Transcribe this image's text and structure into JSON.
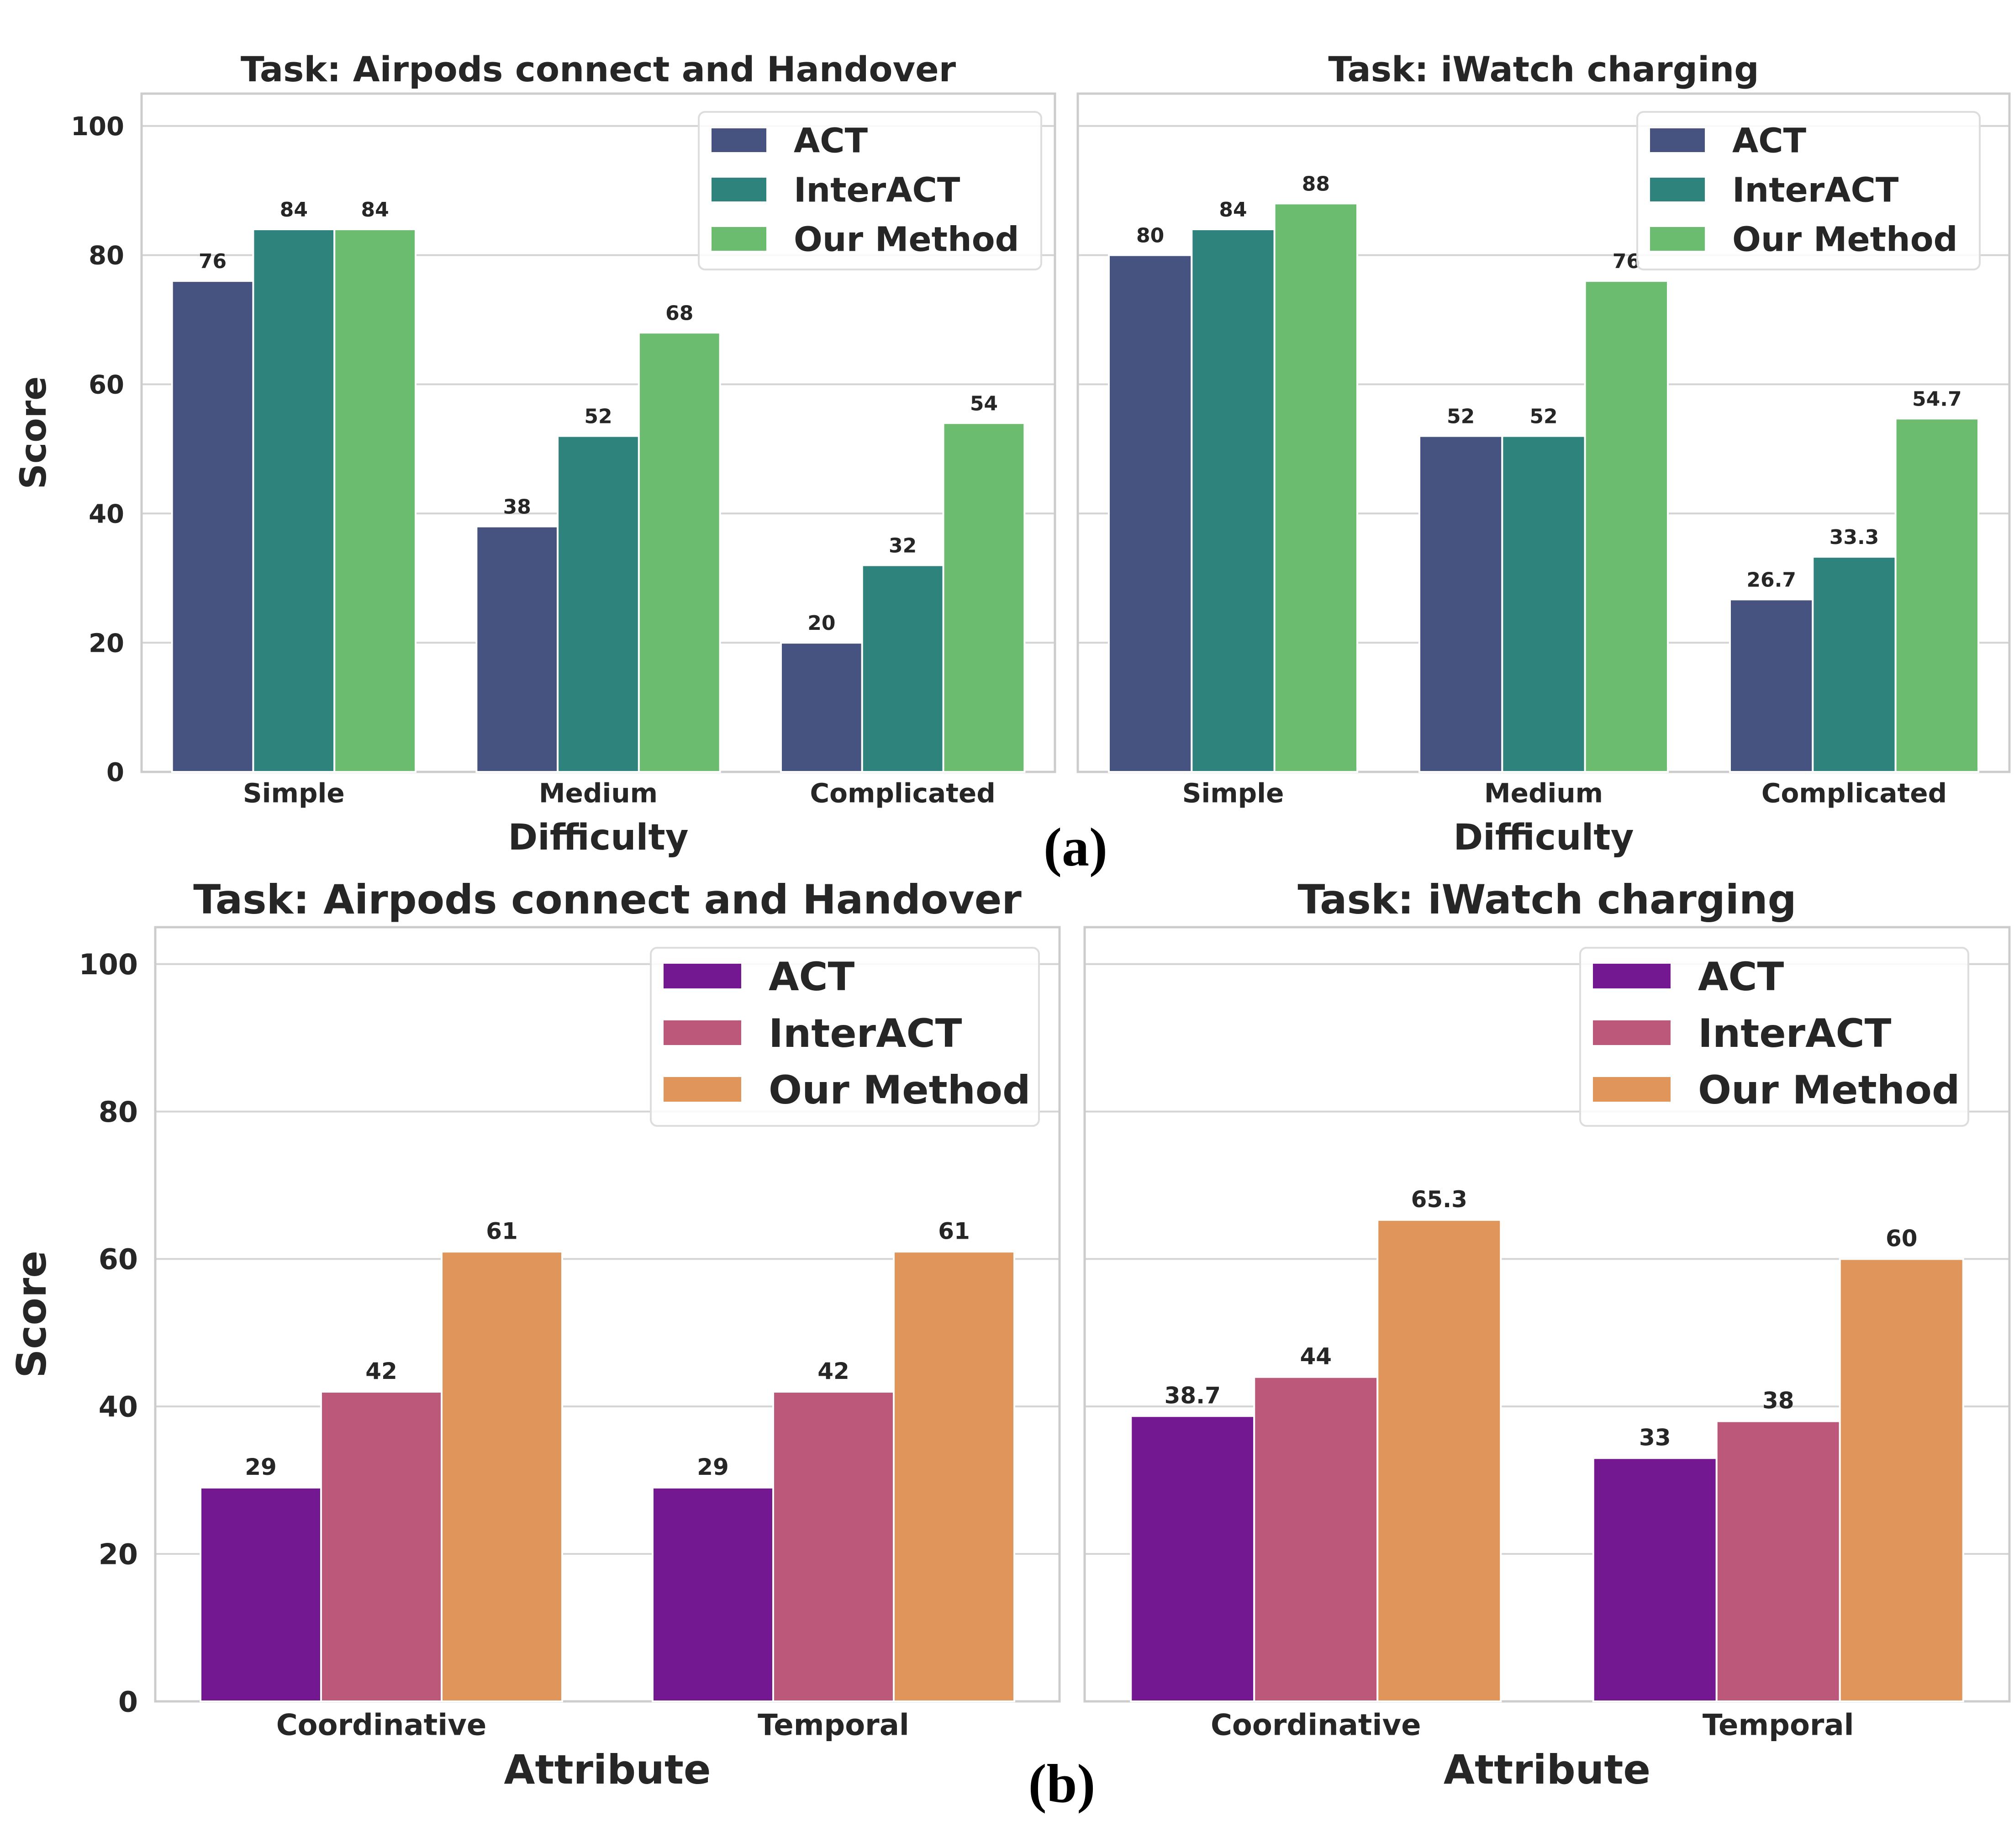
{
  "figure": {
    "row_labels": [
      "(a)",
      "(b)"
    ]
  },
  "chart_data": [
    {
      "type": "bar",
      "row": "a",
      "title": "Task: Airpods connect and Handover",
      "xlabel": "Difficulty",
      "ylabel": "Score",
      "ylim": [
        0,
        105
      ],
      "yticks": [
        0,
        20,
        40,
        60,
        80,
        100
      ],
      "grid": true,
      "legend_position": "top-right",
      "categories": [
        "Simple",
        "Medium",
        "Complicated"
      ],
      "series": [
        {
          "name": "ACT",
          "color": "#46527f",
          "values": [
            76,
            38,
            20
          ],
          "labels": [
            "76",
            "38",
            "20"
          ]
        },
        {
          "name": "InterACT",
          "color": "#2e837c",
          "values": [
            84,
            52,
            32
          ],
          "labels": [
            "84",
            "52",
            "32"
          ]
        },
        {
          "name": "Our Method",
          "color": "#6bbc6e",
          "values": [
            84,
            68,
            54
          ],
          "labels": [
            "84",
            "68",
            "54"
          ]
        }
      ]
    },
    {
      "type": "bar",
      "row": "a",
      "title": "Task: iWatch charging",
      "xlabel": "Difficulty",
      "ylabel": "",
      "ylim": [
        0,
        105
      ],
      "yticks": [
        0,
        20,
        40,
        60,
        80,
        100
      ],
      "grid": true,
      "legend_position": "top-right",
      "categories": [
        "Simple",
        "Medium",
        "Complicated"
      ],
      "series": [
        {
          "name": "ACT",
          "color": "#46527f",
          "values": [
            80,
            52,
            26.7
          ],
          "labels": [
            "80",
            "52",
            "26.7"
          ]
        },
        {
          "name": "InterACT",
          "color": "#2e837c",
          "values": [
            84,
            52,
            33.3
          ],
          "labels": [
            "84",
            "52",
            "33.3"
          ]
        },
        {
          "name": "Our Method",
          "color": "#6bbc6e",
          "values": [
            88,
            76,
            54.7
          ],
          "labels": [
            "88",
            "76",
            "54.7"
          ]
        }
      ]
    },
    {
      "type": "bar",
      "row": "b",
      "title": "Task: Airpods connect and Handover",
      "xlabel": "Attribute",
      "ylabel": "Score",
      "ylim": [
        0,
        105
      ],
      "yticks": [
        0,
        20,
        40,
        60,
        80,
        100
      ],
      "grid": true,
      "legend_position": "top-right",
      "categories": [
        "Coordinative",
        "Temporal"
      ],
      "series": [
        {
          "name": "ACT",
          "color": "#741891",
          "values": [
            29,
            29
          ],
          "labels": [
            "29",
            "29"
          ]
        },
        {
          "name": "InterACT",
          "color": "#bc5879",
          "values": [
            42,
            42
          ],
          "labels": [
            "42",
            "42"
          ]
        },
        {
          "name": "Our Method",
          "color": "#e0965a",
          "values": [
            61,
            61
          ],
          "labels": [
            "61",
            "61"
          ]
        }
      ]
    },
    {
      "type": "bar",
      "row": "b",
      "title": "Task: iWatch charging",
      "xlabel": "Attribute",
      "ylabel": "",
      "ylim": [
        0,
        105
      ],
      "yticks": [
        0,
        20,
        40,
        60,
        80,
        100
      ],
      "grid": true,
      "legend_position": "top-right",
      "categories": [
        "Coordinative",
        "Temporal"
      ],
      "series": [
        {
          "name": "ACT",
          "color": "#741891",
          "values": [
            38.7,
            33
          ],
          "labels": [
            "38.7",
            "33"
          ]
        },
        {
          "name": "InterACT",
          "color": "#bc5879",
          "values": [
            44,
            38
          ],
          "labels": [
            "44",
            "38"
          ]
        },
        {
          "name": "Our Method",
          "color": "#e0965a",
          "values": [
            65.3,
            60
          ],
          "labels": [
            "65.3",
            "60"
          ]
        }
      ]
    }
  ]
}
